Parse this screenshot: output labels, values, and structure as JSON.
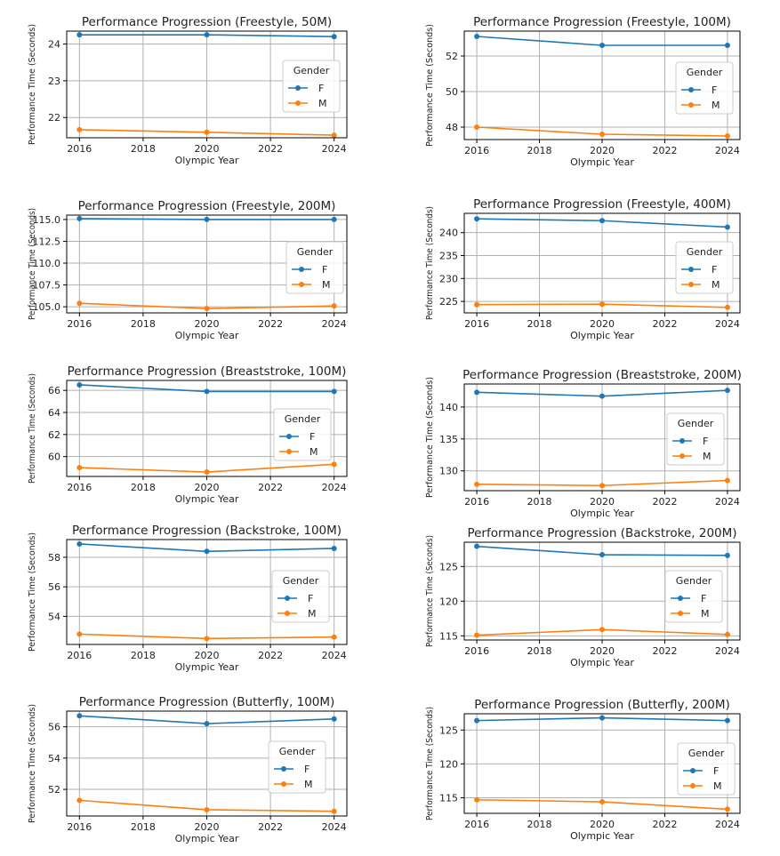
{
  "colors": {
    "F": "#1f77b4",
    "M": "#ff7f0e",
    "grid": "#b0b0b0",
    "frame": "#000000"
  },
  "legend": {
    "title": "Gender",
    "entries": [
      "F",
      "M"
    ]
  },
  "chart_data": [
    {
      "type": "line",
      "title": "Performance Progression (Freestyle, 50M)",
      "xlabel": "Olympic Year",
      "ylabel": "Performance Time (Seconds)",
      "x": [
        2016,
        2020,
        2024
      ],
      "xticks": [
        2016,
        2018,
        2020,
        2022,
        2024
      ],
      "xlim": [
        2015.6,
        2024.4
      ],
      "yticks": [
        22,
        23,
        24
      ],
      "ytick_labels": [
        "22",
        "23",
        "24"
      ],
      "ylim": [
        21.45,
        24.35
      ],
      "series": [
        {
          "name": "F",
          "values": [
            24.25,
            24.25,
            24.2
          ]
        },
        {
          "name": "M",
          "values": [
            21.67,
            21.6,
            21.52
          ]
        }
      ]
    },
    {
      "type": "line",
      "title": "Performance Progression (Freestyle, 100M)",
      "xlabel": "Olympic Year",
      "ylabel": "Performance Time (Seconds)",
      "x": [
        2016,
        2020,
        2024
      ],
      "xticks": [
        2016,
        2018,
        2020,
        2022,
        2024
      ],
      "xlim": [
        2015.6,
        2024.4
      ],
      "yticks": [
        48,
        50,
        52
      ],
      "ytick_labels": [
        "48",
        "50",
        "52"
      ],
      "ylim": [
        47.3,
        53.4
      ],
      "series": [
        {
          "name": "F",
          "values": [
            53.1,
            52.6,
            52.6
          ]
        },
        {
          "name": "M",
          "values": [
            48.0,
            47.6,
            47.5
          ]
        }
      ]
    },
    {
      "type": "line",
      "title": "Performance Progression (Freestyle, 200M)",
      "xlabel": "Olympic Year",
      "ylabel": "Performance Time (Seconds)",
      "x": [
        2016,
        2020,
        2024
      ],
      "xticks": [
        2016,
        2018,
        2020,
        2022,
        2024
      ],
      "xlim": [
        2015.6,
        2024.4
      ],
      "yticks": [
        105,
        107.5,
        110,
        112.5,
        115
      ],
      "ytick_labels": [
        "105.0",
        "107.5",
        "110.0",
        "112.5",
        "115.0"
      ],
      "ylim": [
        104.3,
        115.5
      ],
      "series": [
        {
          "name": "F",
          "values": [
            115.1,
            115.0,
            115.0
          ]
        },
        {
          "name": "M",
          "values": [
            105.4,
            104.8,
            105.1
          ]
        }
      ]
    },
    {
      "type": "line",
      "title": "Performance Progression (Freestyle, 400M)",
      "xlabel": "Olympic Year",
      "ylabel": "Performance Time (Seconds)",
      "x": [
        2016,
        2020,
        2024
      ],
      "xticks": [
        2016,
        2018,
        2020,
        2022,
        2024
      ],
      "xlim": [
        2015.6,
        2024.4
      ],
      "yticks": [
        225,
        230,
        235,
        240
      ],
      "ytick_labels": [
        "225",
        "230",
        "235",
        "240"
      ],
      "ylim": [
        222.5,
        244.2
      ],
      "series": [
        {
          "name": "F",
          "values": [
            243.0,
            242.6,
            241.2
          ]
        },
        {
          "name": "M",
          "values": [
            224.3,
            224.4,
            223.7
          ]
        }
      ]
    },
    {
      "type": "line",
      "title": "Performance Progression (Breaststroke, 100M)",
      "xlabel": "Olympic Year",
      "ylabel": "Performance Time (Seconds)",
      "x": [
        2016,
        2020,
        2024
      ],
      "xticks": [
        2016,
        2018,
        2020,
        2022,
        2024
      ],
      "xlim": [
        2015.6,
        2024.4
      ],
      "yticks": [
        60,
        62,
        64,
        66
      ],
      "ytick_labels": [
        "60",
        "62",
        "64",
        "66"
      ],
      "ylim": [
        58.2,
        66.9
      ],
      "series": [
        {
          "name": "F",
          "values": [
            66.5,
            65.9,
            65.9
          ]
        },
        {
          "name": "M",
          "values": [
            59.0,
            58.6,
            59.3
          ]
        }
      ]
    },
    {
      "type": "line",
      "title": "Performance Progression (Breaststroke, 200M)",
      "xlabel": "Olympic Year",
      "ylabel": "Performance Time (Seconds)",
      "x": [
        2016,
        2020,
        2024
      ],
      "xticks": [
        2016,
        2018,
        2020,
        2022,
        2024
      ],
      "xlim": [
        2015.6,
        2024.4
      ],
      "yticks": [
        130,
        135,
        140
      ],
      "ytick_labels": [
        "130",
        "135",
        "140"
      ],
      "ylim": [
        126.9,
        143.6
      ],
      "series": [
        {
          "name": "F",
          "values": [
            142.3,
            141.7,
            142.6
          ]
        },
        {
          "name": "M",
          "values": [
            127.9,
            127.7,
            128.5
          ]
        }
      ]
    },
    {
      "type": "line",
      "title": "Performance Progression (Backstroke, 100M)",
      "xlabel": "Olympic Year",
      "ylabel": "Performance Time (Seconds)",
      "x": [
        2016,
        2020,
        2024
      ],
      "xticks": [
        2016,
        2018,
        2020,
        2022,
        2024
      ],
      "xlim": [
        2015.6,
        2024.4
      ],
      "yticks": [
        54,
        56,
        58
      ],
      "ytick_labels": [
        "54",
        "56",
        "58"
      ],
      "ylim": [
        52.1,
        59.2
      ],
      "series": [
        {
          "name": "F",
          "values": [
            58.9,
            58.4,
            58.6
          ]
        },
        {
          "name": "M",
          "values": [
            52.8,
            52.5,
            52.6
          ]
        }
      ]
    },
    {
      "type": "line",
      "title": "Performance Progression (Backstroke, 200M)",
      "xlabel": "Olympic Year",
      "ylabel": "Performance Time (Seconds)",
      "x": [
        2016,
        2020,
        2024
      ],
      "xticks": [
        2016,
        2018,
        2020,
        2022,
        2024
      ],
      "xlim": [
        2015.6,
        2024.4
      ],
      "yticks": [
        115,
        120,
        125
      ],
      "ytick_labels": [
        "115",
        "120",
        "125"
      ],
      "ylim": [
        114.4,
        128.5
      ],
      "series": [
        {
          "name": "F",
          "values": [
            127.9,
            126.7,
            126.6
          ]
        },
        {
          "name": "M",
          "values": [
            115.1,
            115.9,
            115.2
          ]
        }
      ]
    },
    {
      "type": "line",
      "title": "Performance Progression (Butterfly, 100M)",
      "xlabel": "Olympic Year",
      "ylabel": "Performance Time (Seconds)",
      "x": [
        2016,
        2020,
        2024
      ],
      "xticks": [
        2016,
        2018,
        2020,
        2022,
        2024
      ],
      "xlim": [
        2015.6,
        2024.4
      ],
      "yticks": [
        52,
        54,
        56
      ],
      "ytick_labels": [
        "52",
        "54",
        "56"
      ],
      "ylim": [
        50.3,
        57.0
      ],
      "series": [
        {
          "name": "F",
          "values": [
            56.7,
            56.2,
            56.5
          ]
        },
        {
          "name": "M",
          "values": [
            51.3,
            50.7,
            50.6
          ]
        }
      ]
    },
    {
      "type": "line",
      "title": "Performance Progression (Butterfly, 200M)",
      "xlabel": "Olympic Year",
      "ylabel": "Performance Time (Seconds)",
      "x": [
        2016,
        2020,
        2024
      ],
      "xticks": [
        2016,
        2018,
        2020,
        2022,
        2024
      ],
      "xlim": [
        2015.6,
        2024.4
      ],
      "yticks": [
        115,
        120,
        125
      ],
      "ytick_labels": [
        "115",
        "120",
        "125"
      ],
      "ylim": [
        112.7,
        127.4
      ],
      "series": [
        {
          "name": "F",
          "values": [
            126.4,
            126.8,
            126.4
          ]
        },
        {
          "name": "M",
          "values": [
            114.7,
            114.4,
            113.3
          ]
        }
      ]
    }
  ]
}
